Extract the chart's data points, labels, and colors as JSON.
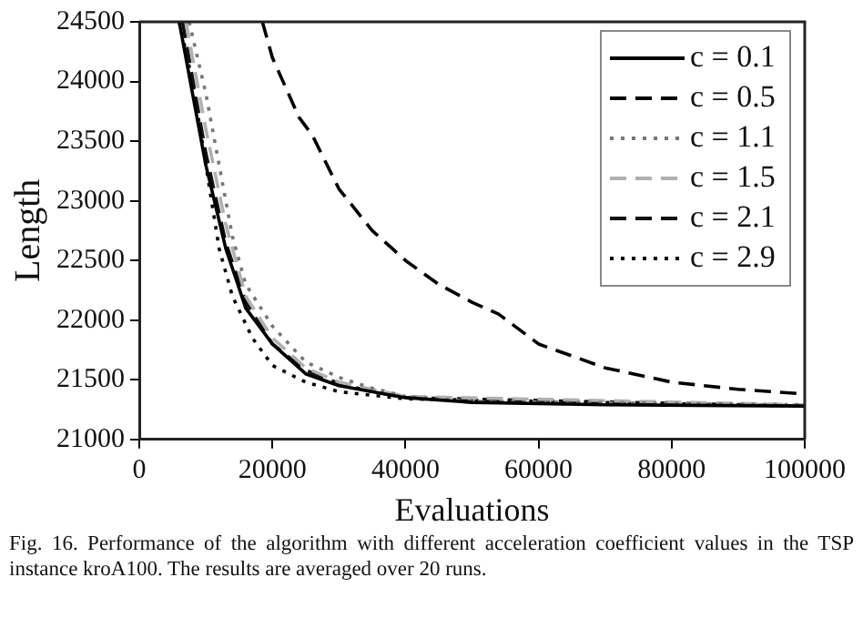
{
  "chart_data": {
    "type": "line",
    "xlabel": "Evaluations",
    "ylabel": "Length",
    "xlim": [
      0,
      100000
    ],
    "xticks": [
      0,
      20000,
      40000,
      60000,
      80000,
      100000
    ],
    "ylim": [
      21000,
      24500
    ],
    "yticks": [
      21000,
      21500,
      22000,
      22500,
      23000,
      23500,
      24000,
      24500
    ],
    "grid": false,
    "legend": "top right",
    "marker": "none",
    "series": [
      {
        "name": "c = 0.1",
        "color": "#000000",
        "line_style": "solid",
        "x": [
          6000,
          10000,
          13000,
          16000,
          20000,
          25000,
          30000,
          40000,
          50000,
          70000,
          100000
        ],
        "values": [
          24500,
          23300,
          22600,
          22100,
          21800,
          21550,
          21450,
          21350,
          21310,
          21290,
          21280
        ]
      },
      {
        "name": "c = 0.5",
        "color": "#000000",
        "line_style": "dashed",
        "x": [
          18500,
          20000,
          24000,
          26000,
          30000,
          35000,
          40000,
          45000,
          50000,
          54000,
          60000,
          70000,
          80000,
          90000,
          100000
        ],
        "values": [
          24500,
          24200,
          23700,
          23550,
          23100,
          22750,
          22500,
          22300,
          22150,
          22050,
          21800,
          21600,
          21480,
          21420,
          21380
        ]
      },
      {
        "name": "c = 1.1",
        "color": "#777777",
        "line_style": "dotted",
        "x": [
          7500,
          10000,
          12000,
          14000,
          16000,
          20000,
          25000,
          30000,
          35000,
          40000,
          50000,
          100000
        ],
        "values": [
          24500,
          23900,
          23300,
          22700,
          22300,
          21950,
          21650,
          21520,
          21430,
          21360,
          21320,
          21290
        ]
      },
      {
        "name": "c = 1.5",
        "color": "#b0b0b0",
        "line_style": "dashed",
        "x": [
          7000,
          10000,
          13000,
          16000,
          20000,
          25000,
          30000,
          40000,
          100000
        ],
        "values": [
          24500,
          23600,
          22800,
          22200,
          21850,
          21600,
          21480,
          21360,
          21290
        ]
      },
      {
        "name": "c = 2.1",
        "color": "#111111",
        "line_style": "dashed",
        "x": [
          6500,
          10000,
          13000,
          16000,
          20000,
          25000,
          30000,
          35000,
          40000,
          100000
        ],
        "values": [
          24500,
          23400,
          22650,
          22150,
          21800,
          21580,
          21470,
          21400,
          21350,
          21280
        ]
      },
      {
        "name": "c = 2.9",
        "color": "#000000",
        "line_style": "dotted",
        "x": [
          6000,
          8000,
          10000,
          12000,
          14000,
          17000,
          20000,
          25000,
          30000,
          40000,
          100000
        ],
        "values": [
          24500,
          24000,
          23300,
          22600,
          22200,
          21850,
          21620,
          21480,
          21400,
          21340,
          21280
        ]
      }
    ],
    "annotations": [
      "Fig. 16.   Performance of the algorithm with different acceleration coefficient values in the TSP instance kroA100. The results are averaged over 20 runs."
    ]
  }
}
